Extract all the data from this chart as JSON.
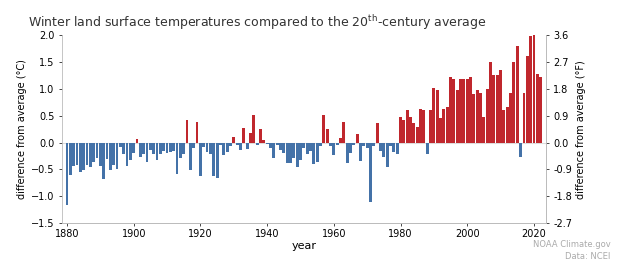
{
  "title_part1": "Winter land surface temperatures compared to the 20",
  "title_super": "th",
  "title_part2": "-century average",
  "xlabel": "year",
  "ylabel_left": "difference from average (°C)",
  "ylabel_right": "difference from average (°F)",
  "ylim": [
    -1.5,
    2.0
  ],
  "ylim_f": [
    -2.7,
    3.6
  ],
  "xlim": [
    1878.5,
    2023.5
  ],
  "xticks": [
    1880,
    1900,
    1920,
    1940,
    1960,
    1980,
    2000,
    2020
  ],
  "yticks_left": [
    -1.5,
    -1.0,
    -0.5,
    0.0,
    0.5,
    1.0,
    1.5,
    2.0
  ],
  "yticks_right": [
    -2.7,
    -1.8,
    -0.9,
    0.0,
    0.9,
    1.8,
    2.7,
    3.6
  ],
  "color_positive": "#c0272d",
  "color_negative": "#4472a8",
  "background_color": "#ffffff",
  "grid_color": "#dddddd",
  "credit": "NOAA Climate.gov\nData: NCEI",
  "credit_color": "#aaaaaa",
  "years": [
    1880,
    1881,
    1882,
    1883,
    1884,
    1885,
    1886,
    1887,
    1888,
    1889,
    1890,
    1891,
    1892,
    1893,
    1894,
    1895,
    1896,
    1897,
    1898,
    1899,
    1900,
    1901,
    1902,
    1903,
    1904,
    1905,
    1906,
    1907,
    1908,
    1909,
    1910,
    1911,
    1912,
    1913,
    1914,
    1915,
    1916,
    1917,
    1918,
    1919,
    1920,
    1921,
    1922,
    1923,
    1924,
    1925,
    1926,
    1927,
    1928,
    1929,
    1930,
    1931,
    1932,
    1933,
    1934,
    1935,
    1936,
    1937,
    1938,
    1939,
    1940,
    1941,
    1942,
    1943,
    1944,
    1945,
    1946,
    1947,
    1948,
    1949,
    1950,
    1951,
    1952,
    1953,
    1954,
    1955,
    1956,
    1957,
    1958,
    1959,
    1960,
    1961,
    1962,
    1963,
    1964,
    1965,
    1966,
    1967,
    1968,
    1969,
    1970,
    1971,
    1972,
    1973,
    1974,
    1975,
    1976,
    1977,
    1978,
    1979,
    1980,
    1981,
    1982,
    1983,
    1984,
    1985,
    1986,
    1987,
    1988,
    1989,
    1990,
    1991,
    1992,
    1993,
    1994,
    1995,
    1996,
    1997,
    1998,
    1999,
    2000,
    2001,
    2002,
    2003,
    2004,
    2005,
    2006,
    2007,
    2008,
    2009,
    2010,
    2011,
    2012,
    2013,
    2014,
    2015,
    2016,
    2017,
    2018,
    2019,
    2020,
    2021,
    2022
  ],
  "values": [
    -1.16,
    -0.6,
    -0.44,
    -0.42,
    -0.55,
    -0.52,
    -0.42,
    -0.46,
    -0.36,
    -0.28,
    -0.44,
    -0.68,
    -0.3,
    -0.52,
    -0.42,
    -0.5,
    -0.08,
    -0.22,
    -0.44,
    -0.32,
    -0.2,
    0.06,
    -0.26,
    -0.22,
    -0.36,
    -0.14,
    -0.22,
    -0.32,
    -0.22,
    -0.16,
    -0.2,
    -0.18,
    -0.16,
    -0.58,
    -0.28,
    -0.22,
    0.42,
    -0.52,
    -0.1,
    0.38,
    -0.62,
    -0.08,
    -0.18,
    -0.22,
    -0.62,
    -0.66,
    -0.04,
    -0.24,
    -0.18,
    -0.06,
    0.1,
    -0.04,
    -0.14,
    0.28,
    -0.12,
    0.18,
    0.52,
    -0.04,
    0.26,
    0.04,
    -0.02,
    -0.1,
    -0.28,
    -0.04,
    -0.14,
    -0.2,
    -0.38,
    -0.38,
    -0.28,
    -0.46,
    -0.32,
    -0.1,
    -0.22,
    -0.16,
    -0.4,
    -0.36,
    -0.06,
    0.52,
    0.26,
    -0.06,
    -0.24,
    -0.04,
    0.08,
    0.38,
    -0.38,
    -0.2,
    -0.04,
    0.16,
    -0.34,
    -0.06,
    -0.1,
    -1.1,
    -0.06,
    0.36,
    -0.16,
    -0.26,
    -0.46,
    -0.06,
    -0.18,
    -0.22,
    0.48,
    0.42,
    0.6,
    0.48,
    0.36,
    0.3,
    0.62,
    0.6,
    -0.22,
    0.6,
    1.02,
    0.98,
    0.46,
    0.62,
    0.66,
    1.22,
    1.18,
    0.98,
    1.18,
    1.18,
    1.18,
    1.22,
    0.9,
    0.98,
    0.92,
    0.48,
    1.0,
    1.5,
    1.26,
    1.26,
    1.36,
    0.6,
    0.66,
    0.92,
    1.5,
    1.8,
    -0.26,
    0.92,
    1.62,
    1.98,
    2.0,
    1.28,
    1.22
  ]
}
